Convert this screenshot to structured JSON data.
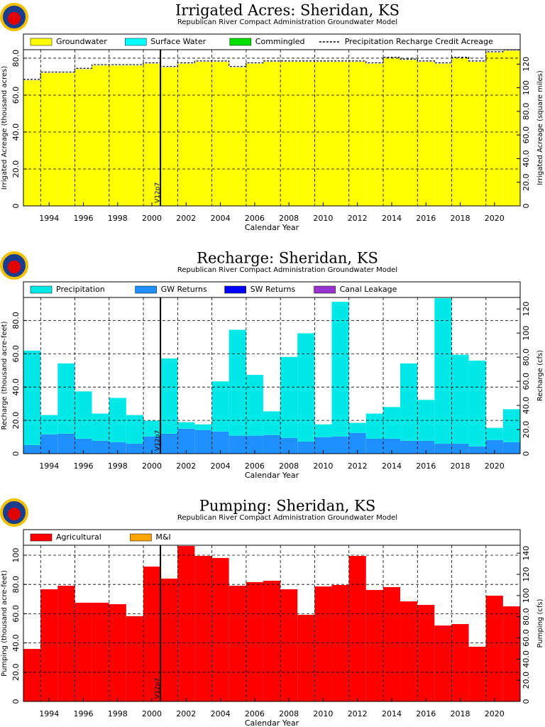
{
  "chart_data": [
    {
      "type": "bar",
      "stacked": true,
      "title": "Irrigated Acres: Sheridan, KS",
      "subtitle": "Republican River Compact Administration Groundwater Model",
      "xlabel": "Calendar Year",
      "ylabel": "Irrigated Acreage (thousand acres)",
      "y2label": "Irrigated Acreage (square miles)",
      "grid": true,
      "x": [
        1993,
        1994,
        1995,
        1996,
        1997,
        1998,
        1999,
        2000,
        2001,
        2002,
        2003,
        2004,
        2005,
        2006,
        2007,
        2008,
        2009,
        2010,
        2011,
        2012,
        2013,
        2014,
        2015,
        2016,
        2017,
        2018,
        2019,
        2020,
        2021
      ],
      "xlim": [
        1992.5,
        2021.5
      ],
      "xticks": [
        1994,
        1996,
        1998,
        2000,
        2002,
        2004,
        2006,
        2008,
        2010,
        2012,
        2014,
        2016,
        2018,
        2020
      ],
      "ylim": [
        0,
        84.6
      ],
      "yticks": [
        0,
        {
          "value": 20,
          "label": "20.0"
        },
        {
          "value": 40,
          "label": "40.0"
        },
        {
          "value": 60,
          "label": "60.0"
        },
        {
          "value": 80,
          "label": "80.0"
        }
      ],
      "y2lim": [
        0,
        132.2
      ],
      "y2ticks": [
        0,
        {
          "value": 20,
          "label": "20.0"
        },
        {
          "value": 40,
          "label": "40.0"
        },
        {
          "value": 60,
          "label": "60.0"
        },
        {
          "value": 80,
          "label": "80.0"
        },
        100,
        120
      ],
      "annotations": [
        {
          "text": "V12p7",
          "x": 2000.5
        }
      ],
      "series": [
        {
          "name": "Groundwater",
          "color": "#ffff00",
          "values": [
            68,
            72,
            72,
            74,
            76,
            76,
            76,
            77,
            75,
            77,
            78,
            78,
            75,
            77,
            78,
            78,
            78,
            78,
            78,
            78,
            77,
            80,
            79,
            78,
            77,
            80,
            78,
            83,
            84
          ]
        },
        {
          "name": "Surface Water",
          "color": "#00ffff",
          "values": [
            0,
            0,
            0,
            0,
            0,
            0,
            0,
            0,
            0,
            0,
            0,
            0,
            0,
            0,
            0,
            0,
            0,
            0,
            0,
            0,
            0,
            0,
            0,
            0,
            0,
            0,
            0,
            0,
            0
          ]
        },
        {
          "name": "Commingled",
          "color": "#00e000",
          "values": [
            0,
            0,
            0,
            0,
            0,
            0,
            0,
            0,
            0,
            0,
            0,
            0,
            0,
            0,
            0,
            0,
            0,
            0,
            0,
            0,
            0,
            0,
            0,
            0,
            0,
            0,
            0,
            0,
            0
          ]
        },
        {
          "name": "Precipitation Recharge Credit Acreage",
          "type": "line",
          "color": "#000000",
          "values": [
            68.5,
            72.5,
            72.5,
            74.5,
            76.5,
            76.5,
            76.5,
            77.5,
            75.5,
            77.5,
            78.5,
            78.5,
            75.5,
            77.5,
            78.5,
            78.5,
            78.5,
            78.5,
            78.5,
            78.5,
            77.5,
            80.5,
            79.5,
            78.5,
            77.5,
            80.5,
            78.5,
            83.5,
            84.5
          ]
        }
      ]
    },
    {
      "type": "bar",
      "stacked": true,
      "title": "Recharge: Sheridan, KS",
      "subtitle": "Republican River Compact Administration Groundwater Model",
      "xlabel": "Calendar Year",
      "ylabel": "Recharge (thousand acre-feet)",
      "y2label": "Recharge (cfs)",
      "grid": true,
      "x": [
        1993,
        1994,
        1995,
        1996,
        1997,
        1998,
        1999,
        2000,
        2001,
        2002,
        2003,
        2004,
        2005,
        2006,
        2007,
        2008,
        2009,
        2010,
        2011,
        2012,
        2013,
        2014,
        2015,
        2016,
        2017,
        2018,
        2019,
        2020,
        2021
      ],
      "xlim": [
        1992.5,
        2021.5
      ],
      "xticks": [
        1994,
        1996,
        1998,
        2000,
        2002,
        2004,
        2006,
        2008,
        2010,
        2012,
        2014,
        2016,
        2018,
        2020
      ],
      "ylim": [
        0,
        93.8
      ],
      "yticks": [
        0,
        {
          "value": 20,
          "label": "20.0"
        },
        {
          "value": 40,
          "label": "40.0"
        },
        {
          "value": 60,
          "label": "60.0"
        },
        {
          "value": 80,
          "label": "80.0"
        }
      ],
      "y2lim": [
        0,
        129.5
      ],
      "y2ticks": [
        0,
        {
          "value": 20,
          "label": "20.0"
        },
        {
          "value": 40,
          "label": "40.0"
        },
        {
          "value": 60,
          "label": "60.0"
        },
        {
          "value": 80,
          "label": "80.0"
        },
        100,
        120
      ],
      "annotations": [
        {
          "text": "V12p7",
          "x": 2000.5
        }
      ],
      "series": [
        {
          "name": "GW Returns",
          "color": "#1e90ff",
          "values": [
            5.2,
            11.6,
            12,
            9,
            7.7,
            6.9,
            6,
            10.3,
            12,
            15,
            14.2,
            13.3,
            10.8,
            10.8,
            11.2,
            9.5,
            7.3,
            9.9,
            10.3,
            12.5,
            9,
            9,
            7.7,
            7.7,
            6,
            6,
            4.3,
            8.2,
            6.9
          ]
        },
        {
          "name": "SW Returns",
          "color": "#0000ff",
          "values": [
            0,
            0,
            0,
            0,
            0,
            0,
            0,
            0,
            0,
            0,
            0,
            0,
            0,
            0,
            0,
            0,
            0,
            0,
            0,
            0,
            0,
            0,
            0,
            0,
            0,
            0,
            0,
            0,
            0
          ]
        },
        {
          "name": "Canal Leakage",
          "color": "#9a32cd",
          "values": [
            0,
            0,
            0,
            0,
            0,
            0,
            0,
            0,
            0,
            0,
            0,
            0,
            0,
            0,
            0,
            0,
            0,
            0,
            0,
            0,
            0,
            0,
            0,
            0,
            0,
            0,
            0,
            0,
            0
          ]
        },
        {
          "name": "Precipitation",
          "color": "#00e8e8",
          "values": [
            56.7,
            11.6,
            42.2,
            28.4,
            16.4,
            26.6,
            17.2,
            9.5,
            45.2,
            3.9,
            3.4,
            30.1,
            63.6,
            36.5,
            14.2,
            48.6,
            65,
            7.7,
            80.9,
            6,
            15.1,
            19,
            46.5,
            24.6,
            87.3,
            53.4,
            51.6,
            7.3,
            19.8
          ]
        }
      ],
      "legend_order": [
        3,
        0,
        1,
        2
      ]
    },
    {
      "type": "bar",
      "stacked": true,
      "title": "Pumping: Sheridan, KS",
      "subtitle": "Republican River Compact Administration Groundwater Model",
      "xlabel": "Calendar Year",
      "ylabel": "Pumping (thousand acre-feet)",
      "y2label": "Pumping (cfs)",
      "grid": true,
      "x": [
        1993,
        1994,
        1995,
        1996,
        1997,
        1998,
        1999,
        2000,
        2001,
        2002,
        2003,
        2004,
        2005,
        2006,
        2007,
        2008,
        2009,
        2010,
        2011,
        2012,
        2013,
        2014,
        2015,
        2016,
        2017,
        2018,
        2019,
        2020,
        2021
      ],
      "xlim": [
        1992.5,
        2021.5
      ],
      "xticks": [
        1994,
        1996,
        1998,
        2000,
        2002,
        2004,
        2006,
        2008,
        2010,
        2012,
        2014,
        2016,
        2018,
        2020
      ],
      "ylim": [
        0,
        106.8
      ],
      "yticks": [
        0,
        {
          "value": 20,
          "label": "20.0"
        },
        {
          "value": 40,
          "label": "40.0"
        },
        {
          "value": 60,
          "label": "60.0"
        },
        {
          "value": 80,
          "label": "80.0"
        },
        100
      ],
      "y2lim": [
        0,
        147.5
      ],
      "y2ticks": [
        0,
        {
          "value": 20,
          "label": "20.0"
        },
        {
          "value": 40,
          "label": "40.0"
        },
        {
          "value": 60,
          "label": "60.0"
        },
        {
          "value": 80,
          "label": "80.0"
        },
        100,
        120,
        140
      ],
      "annotations": [
        {
          "text": "V12p7",
          "x": 2000.5
        }
      ],
      "series": [
        {
          "name": "Agricultural",
          "color": "#ff0000",
          "values": [
            35.9,
            76.7,
            79.1,
            67.5,
            67.5,
            66.5,
            58.3,
            92.2,
            84,
            106.3,
            99.5,
            98.1,
            79.1,
            81.6,
            82.5,
            76.7,
            59.2,
            78.6,
            79.6,
            99.5,
            76.2,
            78.2,
            68.4,
            66,
            51.9,
            52.9,
            37.4,
            72.3,
            65
          ]
        },
        {
          "name": "M&I",
          "color": "#ffa500",
          "values": [
            0,
            0,
            0,
            0,
            0,
            0,
            0,
            0,
            0,
            0,
            0,
            0,
            0,
            0,
            0,
            0,
            0,
            0,
            0,
            0,
            0,
            0,
            0,
            0,
            0,
            0,
            0,
            0,
            0
          ]
        }
      ]
    }
  ]
}
